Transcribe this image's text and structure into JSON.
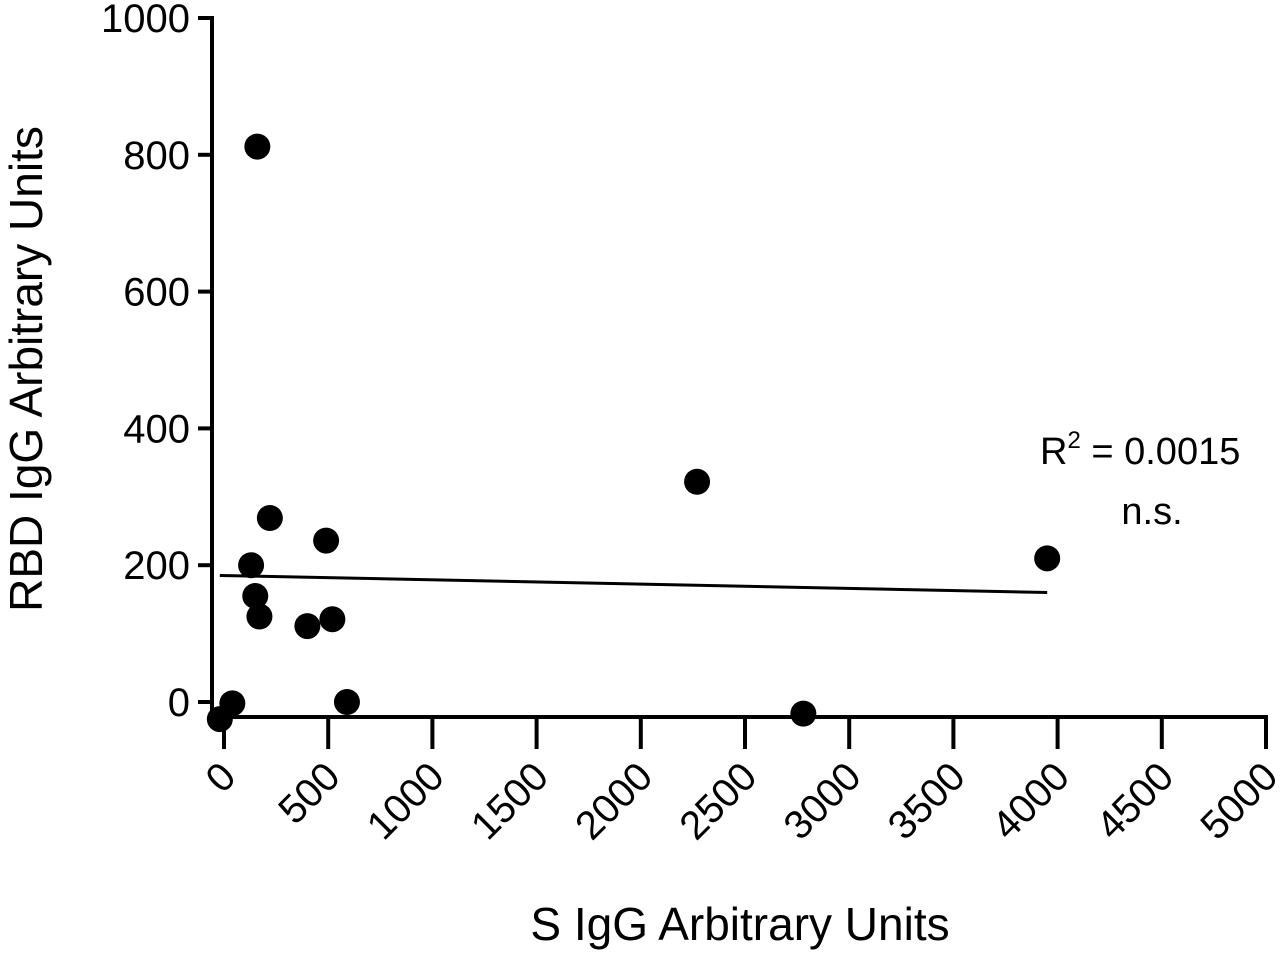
{
  "chart_data": {
    "type": "scatter",
    "xlabel": "S IgG Arbitrary Units",
    "ylabel": "RBD IgG Arbitrary Units",
    "xlim": [
      0,
      5000
    ],
    "ylim": [
      0,
      1000
    ],
    "x_ticks": [
      0,
      500,
      1000,
      1500,
      2000,
      2500,
      3000,
      3500,
      4000,
      4500,
      5000
    ],
    "y_ticks": [
      0,
      200,
      400,
      600,
      800,
      1000
    ],
    "x_tick_labels": [
      "0",
      "500",
      "1000",
      "1500",
      "2000",
      "2500",
      "3000",
      "3500",
      "4000",
      "4500",
      "5000"
    ],
    "y_tick_labels": [
      "0",
      "200",
      "400",
      "600",
      "800",
      "1000"
    ],
    "points": [
      {
        "x": 160,
        "y": 812
      },
      {
        "x": 2270,
        "y": 322
      },
      {
        "x": 3950,
        "y": 210
      },
      {
        "x": 220,
        "y": 269
      },
      {
        "x": 490,
        "y": 236
      },
      {
        "x": 130,
        "y": 200
      },
      {
        "x": 150,
        "y": 155
      },
      {
        "x": 170,
        "y": 125
      },
      {
        "x": 400,
        "y": 111
      },
      {
        "x": 520,
        "y": 121
      },
      {
        "x": 40,
        "y": -2
      },
      {
        "x": 590,
        "y": 0
      },
      {
        "x": -20,
        "y": -25
      },
      {
        "x": 2780,
        "y": -17
      }
    ],
    "fit_line": {
      "x": [
        -20,
        3950
      ],
      "y": [
        185,
        160
      ]
    },
    "annotation": {
      "r_label": "R",
      "r_exponent": "2",
      "r_value": " = 0.0015",
      "significance": "n.s."
    },
    "grid": false,
    "legend": "none"
  }
}
